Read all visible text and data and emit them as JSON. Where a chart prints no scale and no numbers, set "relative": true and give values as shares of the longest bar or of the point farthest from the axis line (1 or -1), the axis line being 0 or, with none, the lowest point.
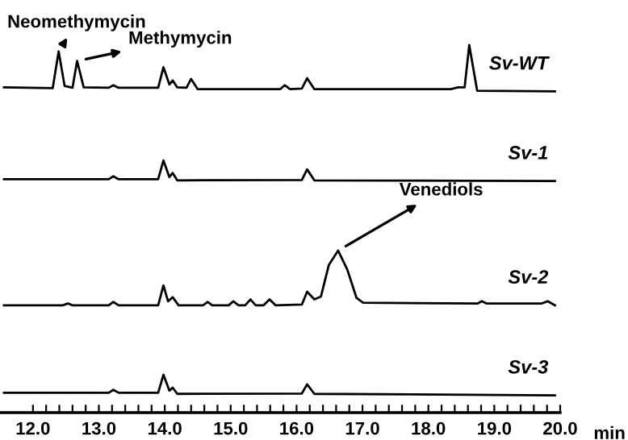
{
  "chart_data": {
    "type": "line",
    "relative": true,
    "xlabel": "min",
    "xlim": [
      11.5,
      20.0
    ],
    "xticks": [
      {
        "value": 12.0,
        "label": "12.0"
      },
      {
        "value": 12.2,
        "label": null
      },
      {
        "value": 12.4,
        "label": null
      },
      {
        "value": 12.6,
        "label": null
      },
      {
        "value": 12.8,
        "label": null
      },
      {
        "value": 13.0,
        "label": "13.0"
      },
      {
        "value": 13.2,
        "label": null
      },
      {
        "value": 13.4,
        "label": null
      },
      {
        "value": 13.6,
        "label": null
      },
      {
        "value": 13.8,
        "label": null
      },
      {
        "value": 14.0,
        "label": "14.0"
      },
      {
        "value": 14.2,
        "label": null
      },
      {
        "value": 14.4,
        "label": null
      },
      {
        "value": 14.6,
        "label": null
      },
      {
        "value": 14.8,
        "label": null
      },
      {
        "value": 15.0,
        "label": "15.0"
      },
      {
        "value": 15.2,
        "label": null
      },
      {
        "value": 15.4,
        "label": null
      },
      {
        "value": 15.6,
        "label": null
      },
      {
        "value": 15.8,
        "label": null
      },
      {
        "value": 16.0,
        "label": "16.0"
      },
      {
        "value": 16.2,
        "label": null
      },
      {
        "value": 16.4,
        "label": null
      },
      {
        "value": 16.6,
        "label": null
      },
      {
        "value": 16.8,
        "label": null
      },
      {
        "value": 17.0,
        "label": "17.0"
      },
      {
        "value": 17.2,
        "label": null
      },
      {
        "value": 17.4,
        "label": null
      },
      {
        "value": 17.6,
        "label": null
      },
      {
        "value": 17.8,
        "label": null
      },
      {
        "value": 18.0,
        "label": "18.0"
      },
      {
        "value": 18.2,
        "label": null
      },
      {
        "value": 18.4,
        "label": null
      },
      {
        "value": 18.6,
        "label": null
      },
      {
        "value": 18.8,
        "label": null
      },
      {
        "value": 19.0,
        "label": "19.0"
      },
      {
        "value": 19.2,
        "label": null
      },
      {
        "value": 19.4,
        "label": null
      },
      {
        "value": 19.6,
        "label": null
      },
      {
        "value": 19.8,
        "label": null
      },
      {
        "value": 20.0,
        "label": "20.0"
      }
    ],
    "tick_labels": "x",
    "grid": false,
    "legend": false,
    "marker": "none",
    "line_style": "solid",
    "series": [
      {
        "name": "Sv-WT",
        "color": "#000000",
        "x": [
          11.56,
          12.3,
          12.39,
          12.48,
          12.6,
          12.67,
          12.77,
          13.15,
          13.22,
          13.3,
          13.9,
          13.98,
          14.07,
          14.12,
          14.19,
          14.33,
          14.4,
          14.5,
          15.75,
          15.82,
          15.9,
          16.08,
          16.16,
          16.27,
          18.34,
          18.45,
          18.55,
          18.62,
          18.74,
          19.92
        ],
        "values": [
          0.885,
          0.883,
          0.983,
          0.889,
          0.884,
          0.957,
          0.885,
          0.884,
          0.891,
          0.884,
          0.884,
          0.94,
          0.893,
          0.904,
          0.885,
          0.884,
          0.908,
          0.88,
          0.88,
          0.891,
          0.88,
          0.882,
          0.91,
          0.88,
          0.88,
          0.885,
          0.885,
          1.0,
          0.876,
          0.874
        ]
      },
      {
        "name": "Sv-1",
        "color": "#000000",
        "x": [
          11.56,
          13.15,
          13.22,
          13.3,
          13.9,
          13.98,
          14.07,
          14.12,
          14.19,
          16.08,
          16.16,
          16.27,
          19.92
        ],
        "values": [
          0.635,
          0.635,
          0.643,
          0.635,
          0.635,
          0.686,
          0.641,
          0.652,
          0.632,
          0.633,
          0.662,
          0.632,
          0.63
        ]
      },
      {
        "name": "Sv-2",
        "color": "#000000",
        "x": [
          11.56,
          12.45,
          12.53,
          12.6,
          13.15,
          13.22,
          13.3,
          13.9,
          13.98,
          14.05,
          14.12,
          14.21,
          14.58,
          14.65,
          14.72,
          14.97,
          15.04,
          15.12,
          15.22,
          15.3,
          15.38,
          15.5,
          15.59,
          15.68,
          16.08,
          16.16,
          16.27,
          16.37,
          16.49,
          16.63,
          16.77,
          16.91,
          17.01,
          18.75,
          18.81,
          18.88,
          19.72,
          19.81,
          19.92
        ],
        "values": [
          0.292,
          0.292,
          0.297,
          0.292,
          0.292,
          0.301,
          0.292,
          0.292,
          0.346,
          0.303,
          0.314,
          0.292,
          0.292,
          0.301,
          0.292,
          0.292,
          0.303,
          0.292,
          0.292,
          0.308,
          0.292,
          0.292,
          0.308,
          0.292,
          0.294,
          0.329,
          0.308,
          0.316,
          0.402,
          0.441,
          0.389,
          0.312,
          0.299,
          0.297,
          0.303,
          0.297,
          0.297,
          0.303,
          0.292
        ]
      },
      {
        "name": "Sv-3",
        "color": "#000000",
        "x": [
          11.56,
          13.15,
          13.22,
          13.3,
          13.9,
          13.98,
          14.07,
          14.12,
          14.19,
          16.08,
          16.16,
          16.27,
          19.92
        ],
        "values": [
          0.054,
          0.054,
          0.062,
          0.054,
          0.054,
          0.103,
          0.06,
          0.068,
          0.051,
          0.052,
          0.077,
          0.051,
          0.047
        ]
      }
    ],
    "annotations": [
      {
        "text": "Neomethymycin",
        "x": 12.39,
        "y": 0.983
      },
      {
        "text": "Methymycin",
        "x": 12.67,
        "y": 0.957
      },
      {
        "text": "Venediols",
        "x": 16.63,
        "y": 0.441
      }
    ]
  }
}
